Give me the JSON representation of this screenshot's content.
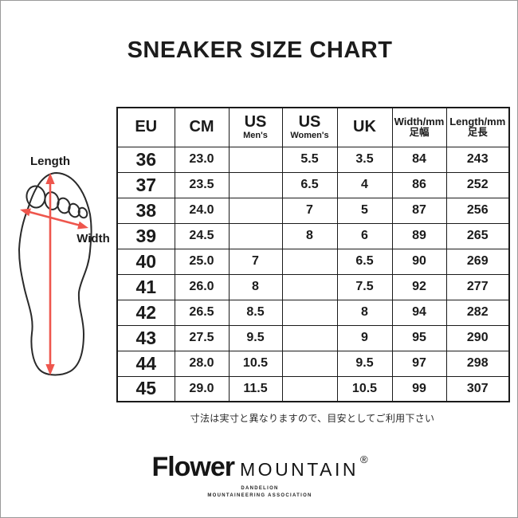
{
  "page": {
    "title": "SNEAKER SIZE CHART",
    "note": "寸法は実寸と異なりますので、目安としてご利用下さい"
  },
  "diagram": {
    "length_label": "Length",
    "width_label": "Width",
    "arrow_color": "#ee564d",
    "outline_color": "#2a2a2a"
  },
  "table": {
    "columns": [
      {
        "label": "EU",
        "sub": ""
      },
      {
        "label": "CM",
        "sub": ""
      },
      {
        "label": "US",
        "sub": "Men's"
      },
      {
        "label": "US",
        "sub": "Women's"
      },
      {
        "label": "UK",
        "sub": ""
      },
      {
        "label": "Width/mm",
        "sub": "足幅"
      },
      {
        "label": "Length/mm",
        "sub": "足長"
      }
    ],
    "rows": [
      [
        "36",
        "23.0",
        "",
        "5.5",
        "3.5",
        "84",
        "243"
      ],
      [
        "37",
        "23.5",
        "",
        "6.5",
        "4",
        "86",
        "252"
      ],
      [
        "38",
        "24.0",
        "",
        "7",
        "5",
        "87",
        "256"
      ],
      [
        "39",
        "24.5",
        "",
        "8",
        "6",
        "89",
        "265"
      ],
      [
        "40",
        "25.0",
        "7",
        "",
        "6.5",
        "90",
        "269"
      ],
      [
        "41",
        "26.0",
        "8",
        "",
        "7.5",
        "92",
        "277"
      ],
      [
        "42",
        "26.5",
        "8.5",
        "",
        "8",
        "94",
        "282"
      ],
      [
        "43",
        "27.5",
        "9.5",
        "",
        "9",
        "95",
        "290"
      ],
      [
        "44",
        "28.0",
        "10.5",
        "",
        "9.5",
        "97",
        "298"
      ],
      [
        "45",
        "29.0",
        "11.5",
        "",
        "10.5",
        "99",
        "307"
      ]
    ]
  },
  "footer": {
    "brand_primary": "Flower",
    "brand_secondary": "MOUNTAIN",
    "registered_mark": "®",
    "tagline_line1": "DANDELION",
    "tagline_line2": "MOUNTAINEERING ASSOCIATION"
  },
  "chart_data": {
    "type": "table",
    "title": "SNEAKER SIZE CHART",
    "columns": [
      "EU",
      "CM",
      "US Men's",
      "US Women's",
      "UK",
      "Width/mm 足幅",
      "Length/mm 足長"
    ],
    "rows": [
      [
        "36",
        "23.0",
        "",
        "5.5",
        "3.5",
        "84",
        "243"
      ],
      [
        "37",
        "23.5",
        "",
        "6.5",
        "4",
        "86",
        "252"
      ],
      [
        "38",
        "24.0",
        "",
        "7",
        "5",
        "87",
        "256"
      ],
      [
        "39",
        "24.5",
        "",
        "8",
        "6",
        "89",
        "265"
      ],
      [
        "40",
        "25.0",
        "7",
        "",
        "6.5",
        "90",
        "269"
      ],
      [
        "41",
        "26.0",
        "8",
        "",
        "7.5",
        "92",
        "277"
      ],
      [
        "42",
        "26.5",
        "8.5",
        "",
        "8",
        "94",
        "282"
      ],
      [
        "43",
        "27.5",
        "9.5",
        "",
        "9",
        "95",
        "290"
      ],
      [
        "44",
        "28.0",
        "10.5",
        "",
        "9.5",
        "97",
        "298"
      ],
      [
        "45",
        "29.0",
        "11.5",
        "",
        "10.5",
        "99",
        "307"
      ]
    ],
    "note": "寸法は実寸と異なりますので、目安としてご利用下さい"
  }
}
